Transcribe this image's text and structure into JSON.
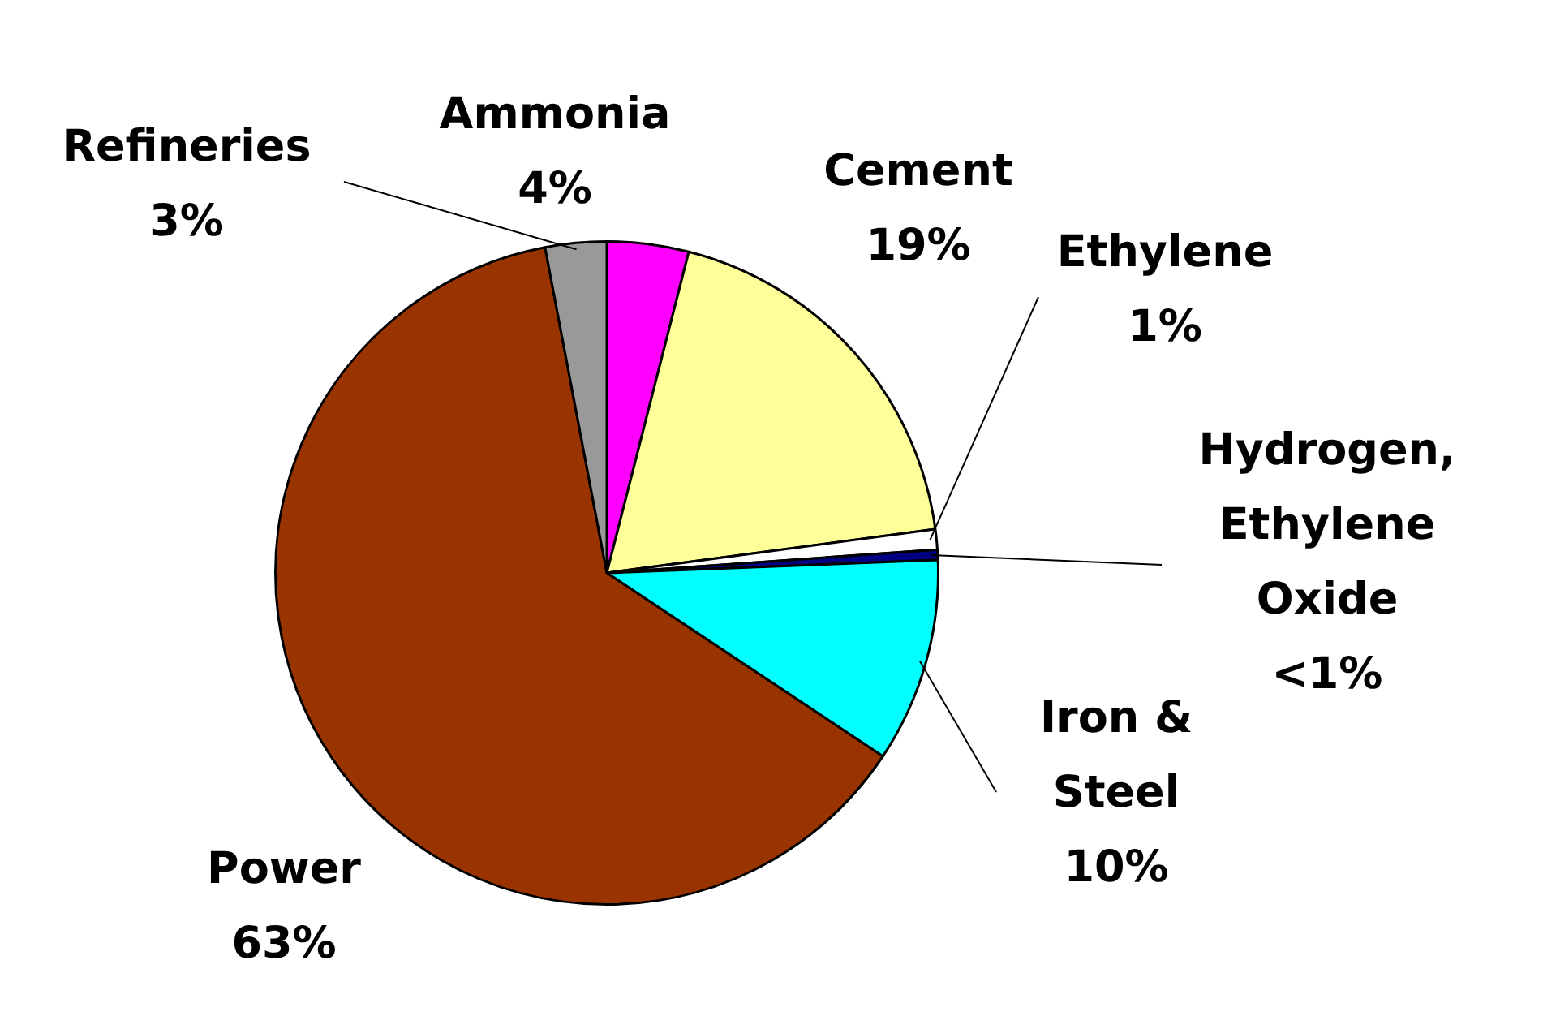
{
  "chart_data": {
    "type": "pie",
    "categories": [
      "Ammonia",
      "Cement",
      "Ethylene",
      "Hydrogen, Ethylene Oxide",
      "Iron & Steel",
      "Power",
      "Refineries"
    ],
    "values": [
      4,
      19,
      1,
      0.5,
      10,
      63,
      3
    ],
    "colors": [
      "#ff00ff",
      "#ffff99",
      "#ffffff",
      "#000080",
      "#00ffff",
      "#993300",
      "#999999"
    ],
    "value_labels": [
      "4%",
      "19%",
      "1%",
      "<1%",
      "10%",
      "63%",
      "3%"
    ],
    "legend": false
  }
}
